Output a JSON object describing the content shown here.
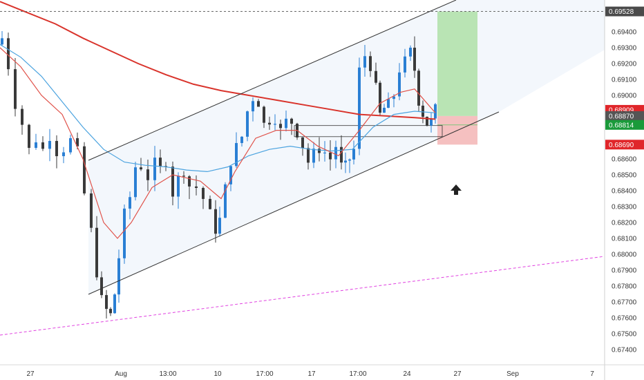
{
  "chart_data": {
    "type": "candlestick",
    "title": "",
    "xlabel": "",
    "ylabel": "",
    "ylim": [
      0.6734,
      0.6962
    ],
    "grid": false,
    "y_ticks": [
      "0.67400",
      "0.67500",
      "0.67600",
      "0.67700",
      "0.67800",
      "0.67900",
      "0.68000",
      "0.68100",
      "0.68200",
      "0.68300",
      "0.68400",
      "0.68500",
      "0.68600",
      "0.68700",
      "0.68900",
      "0.69000",
      "0.69100",
      "0.69200",
      "0.69300",
      "0.69400"
    ],
    "x_ticks": [
      "27",
      "Aug",
      "13:00",
      "10",
      "17:00",
      "17",
      "17:00",
      "24",
      "27",
      "Sep",
      "7"
    ],
    "price_tags": [
      {
        "label": "0.69528",
        "value": 0.69528,
        "color": "#4a4a4a"
      },
      {
        "label": "0.68909",
        "value": 0.68909,
        "color": "#e0262a"
      },
      {
        "label": "0.68870",
        "value": 0.6887,
        "color": "#555555"
      },
      {
        "label": "0.68814",
        "value": 0.68814,
        "color": "#1a9a3a"
      },
      {
        "label": "0.68690",
        "value": 0.6869,
        "color": "#e0262a"
      }
    ],
    "candle_colors": {
      "up": "#2a7fd4",
      "down": "#3a3a3a"
    },
    "ema_colors": {
      "slow": "#d9332b",
      "fast": "#4ba3df",
      "medium": "#e0524a"
    },
    "trade": {
      "entry": 0.6887,
      "target": 0.69528,
      "stop": 0.6869,
      "profit_color": "#b9e4b4",
      "loss_color": "#f5c0c0"
    },
    "annotation_icons": [
      "up-arrow-icon"
    ]
  }
}
